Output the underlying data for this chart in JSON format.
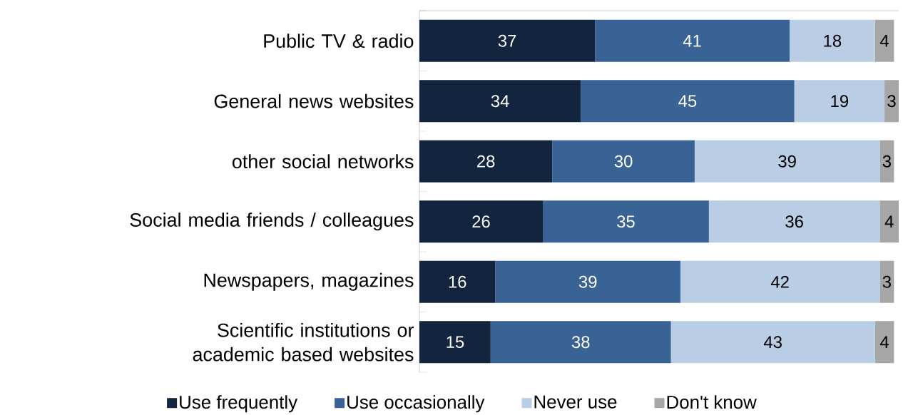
{
  "chart_data": {
    "type": "bar",
    "orientation": "horizontal",
    "stacked": true,
    "data_labels": true,
    "legend": "bottom",
    "tick_labels": "y",
    "categories": [
      "Public TV & radio",
      "General news websites",
      "other social networks",
      "Social media friends / colleagues",
      "Newspapers, magazines",
      "Scientific institutions or academic based websites"
    ],
    "series": [
      {
        "name": "Use frequently",
        "color": "#13243f",
        "values": [
          37,
          34,
          28,
          26,
          16,
          15
        ]
      },
      {
        "name": "Use occasionally",
        "color": "#3a6395",
        "values": [
          41,
          45,
          30,
          35,
          39,
          38
        ]
      },
      {
        "name": "Never use",
        "color": "#b9cde4",
        "values": [
          18,
          19,
          39,
          36,
          42,
          43
        ]
      },
      {
        "name": "Don't know",
        "color": "#a6a6a6",
        "values": [
          4,
          3,
          3,
          4,
          3,
          4
        ]
      }
    ]
  }
}
